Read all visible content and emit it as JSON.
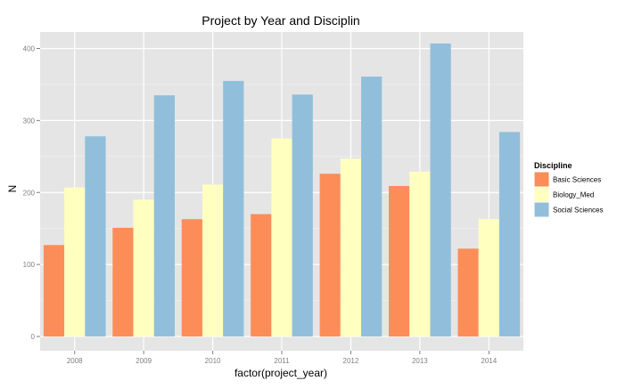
{
  "chart_data": {
    "type": "bar",
    "title": "Project by Year and Disciplin",
    "xlabel": "factor(project_year)",
    "ylabel": "N",
    "categories": [
      "2008",
      "2009",
      "2010",
      "2011",
      "2012",
      "2013",
      "2014"
    ],
    "series": [
      {
        "name": "Basic Sciences",
        "color": "#fc8d59",
        "values": [
          127,
          151,
          163,
          170,
          226,
          209,
          122
        ]
      },
      {
        "name": "Biology_Med",
        "color": "#ffffbf",
        "values": [
          207,
          190,
          211,
          275,
          247,
          229,
          163
        ]
      },
      {
        "name": "Social Sciences",
        "color": "#91bfdb",
        "values": [
          278,
          335,
          355,
          336,
          361,
          407,
          284
        ]
      }
    ],
    "ylim": [
      0,
      430
    ],
    "yticks": [
      0,
      100,
      200,
      300,
      400
    ],
    "grid": true,
    "legend": {
      "title": "Discipline",
      "position": "right"
    }
  }
}
